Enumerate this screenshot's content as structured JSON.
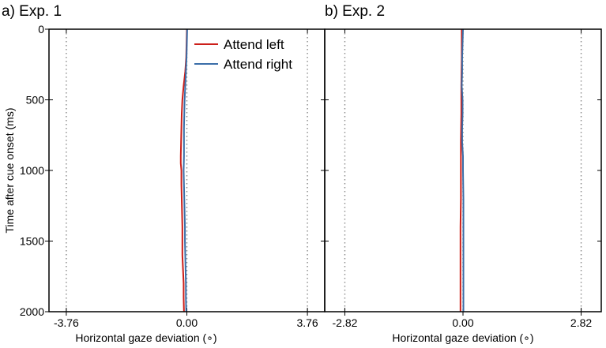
{
  "chart_data": [
    {
      "type": "line",
      "title": "a) Exp. 1",
      "xlabel": "Horizontal gaze deviation (∘)",
      "ylabel": "Time after cue onset (ms)",
      "xlim": [
        -4.3,
        4.3
      ],
      "ylim": [
        2000,
        0
      ],
      "y_inverted": true,
      "xtick_values": [
        -3.76,
        0.0,
        3.76
      ],
      "xtick_labels": [
        "-3.76",
        "0.00",
        "3.76"
      ],
      "ytick_values": [
        0,
        500,
        1000,
        1500,
        2000
      ],
      "ytick_labels": [
        "0",
        "500",
        "1000",
        "1500",
        "2000"
      ],
      "reference_lines_x": [
        -3.76,
        0.0,
        3.76
      ],
      "grid": false,
      "legend": {
        "placement": "top-right",
        "entries": [
          "Attend left",
          "Attend right"
        ]
      },
      "series": [
        {
          "name": "Attend left",
          "color": "#cc1f1a",
          "points": [
            [
              0.0,
              0
            ],
            [
              -0.01,
              100
            ],
            [
              -0.02,
              200
            ],
            [
              -0.05,
              300
            ],
            [
              -0.1,
              400
            ],
            [
              -0.14,
              500
            ],
            [
              -0.16,
              600
            ],
            [
              -0.17,
              700
            ],
            [
              -0.18,
              800
            ],
            [
              -0.19,
              900
            ],
            [
              -0.19,
              950
            ],
            [
              -0.17,
              1000
            ],
            [
              -0.17,
              1100
            ],
            [
              -0.16,
              1200
            ],
            [
              -0.15,
              1300
            ],
            [
              -0.14,
              1400
            ],
            [
              -0.14,
              1500
            ],
            [
              -0.14,
              1600
            ],
            [
              -0.12,
              1700
            ],
            [
              -0.1,
              1800
            ],
            [
              -0.1,
              1900
            ],
            [
              -0.09,
              2000
            ]
          ]
        },
        {
          "name": "Attend right",
          "color": "#3a6ea8",
          "points": [
            [
              0.01,
              0
            ],
            [
              0.0,
              100
            ],
            [
              -0.01,
              200
            ],
            [
              -0.03,
              300
            ],
            [
              -0.05,
              400
            ],
            [
              -0.07,
              500
            ],
            [
              -0.08,
              600
            ],
            [
              -0.09,
              700
            ],
            [
              -0.09,
              800
            ],
            [
              -0.09,
              900
            ],
            [
              -0.1,
              1000
            ],
            [
              -0.09,
              1100
            ],
            [
              -0.08,
              1200
            ],
            [
              -0.07,
              1300
            ],
            [
              -0.06,
              1400
            ],
            [
              -0.06,
              1500
            ],
            [
              -0.05,
              1600
            ],
            [
              -0.04,
              1700
            ],
            [
              -0.03,
              1800
            ],
            [
              -0.03,
              1900
            ],
            [
              -0.02,
              2000
            ]
          ]
        }
      ]
    },
    {
      "type": "line",
      "title": "b) Exp. 2",
      "xlabel": "Horizontal gaze deviation (∘)",
      "ylabel": "",
      "xlim": [
        -3.3,
        3.3
      ],
      "ylim": [
        2000,
        0
      ],
      "y_inverted": true,
      "xtick_values": [
        -2.82,
        0.0,
        2.82
      ],
      "xtick_labels": [
        "-2.82",
        "0.00",
        "2.82"
      ],
      "ytick_values": [
        0,
        500,
        1000,
        1500,
        2000
      ],
      "ytick_labels": [],
      "reference_lines_x": [
        -2.82,
        0.0,
        2.82
      ],
      "grid": false,
      "legend": null,
      "series": [
        {
          "name": "Attend left",
          "color": "#cc1f1a",
          "points": [
            [
              -0.03,
              0
            ],
            [
              -0.03,
              200
            ],
            [
              -0.04,
              400
            ],
            [
              -0.04,
              600
            ],
            [
              -0.05,
              800
            ],
            [
              -0.05,
              1000
            ],
            [
              -0.05,
              1200
            ],
            [
              -0.06,
              1400
            ],
            [
              -0.06,
              1600
            ],
            [
              -0.06,
              1800
            ],
            [
              -0.06,
              2000
            ]
          ]
        },
        {
          "name": "Attend right",
          "color": "#3a6ea8",
          "points": [
            [
              0.0,
              0
            ],
            [
              -0.01,
              100
            ],
            [
              -0.02,
              200
            ],
            [
              -0.02,
              300
            ],
            [
              -0.03,
              400
            ],
            [
              -0.01,
              500
            ],
            [
              -0.01,
              600
            ],
            [
              -0.02,
              700
            ],
            [
              -0.02,
              800
            ],
            [
              0.0,
              900
            ],
            [
              0.0,
              1000
            ],
            [
              0.01,
              1200
            ],
            [
              0.01,
              1400
            ],
            [
              0.01,
              1600
            ],
            [
              0.01,
              1800
            ],
            [
              0.01,
              2000
            ]
          ]
        }
      ]
    }
  ]
}
